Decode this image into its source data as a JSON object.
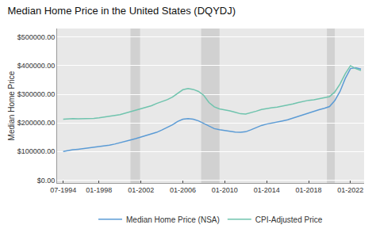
{
  "chart_data": {
    "type": "line",
    "title": "Median Home Price in the United States (DQYDJ)",
    "ylabel": "Median Home Price",
    "x": [
      1994.58,
      1995.0,
      1995.5,
      1996.0,
      1996.5,
      1997.0,
      1997.5,
      1998.0,
      1998.5,
      1999.0,
      1999.5,
      2000.0,
      2000.5,
      2001.0,
      2001.5,
      2002.0,
      2002.5,
      2003.0,
      2003.5,
      2004.0,
      2004.5,
      2005.0,
      2005.5,
      2006.0,
      2006.5,
      2007.0,
      2007.5,
      2008.0,
      2008.5,
      2009.0,
      2009.5,
      2010.0,
      2010.5,
      2011.0,
      2011.5,
      2012.0,
      2012.5,
      2013.0,
      2013.5,
      2014.0,
      2014.5,
      2015.0,
      2015.5,
      2016.0,
      2016.5,
      2017.0,
      2017.5,
      2018.0,
      2018.5,
      2019.0,
      2019.5,
      2020.0,
      2020.5,
      2021.0,
      2021.5,
      2022.0,
      2022.5,
      2023.0
    ],
    "series": [
      {
        "name": "Median Home Price (NSA)",
        "color": "#5b9bd5",
        "values": [
          100000,
          103000,
          106000,
          108000,
          110000,
          112000,
          114000,
          117000,
          119000,
          122000,
          126000,
          130000,
          135000,
          140000,
          145000,
          150000,
          155000,
          160000,
          167000,
          175000,
          183000,
          193000,
          205000,
          213000,
          215000,
          213000,
          207000,
          198000,
          188000,
          180000,
          176000,
          173000,
          171000,
          168000,
          167000,
          169000,
          176000,
          184000,
          191000,
          196000,
          199000,
          203000,
          207000,
          211000,
          217000,
          223000,
          229000,
          236000,
          241000,
          246000,
          251000,
          257000,
          278000,
          310000,
          355000,
          390000,
          393000,
          388000
        ]
      },
      {
        "name": "CPI-Adjusted Price",
        "color": "#70c4ae",
        "values": [
          213000,
          214000,
          215000,
          214000,
          214000,
          215000,
          216000,
          218000,
          220000,
          222000,
          226000,
          229000,
          234000,
          240000,
          246000,
          250000,
          255000,
          260000,
          268000,
          274000,
          281000,
          290000,
          303000,
          316000,
          320000,
          317000,
          310000,
          296000,
          271000,
          256000,
          249000,
          246000,
          242000,
          237000,
          232000,
          231000,
          235000,
          241000,
          247000,
          251000,
          253000,
          255000,
          258000,
          261000,
          266000,
          271000,
          276000,
          279000,
          281000,
          284000,
          288000,
          292000,
          308000,
          336000,
          372000,
          400000,
          390000,
          383000
        ]
      }
    ],
    "shaded_regions": [
      [
        2001.0,
        2001.92
      ],
      [
        2007.75,
        2009.5
      ],
      [
        2019.75,
        2020.5
      ]
    ],
    "xlim": [
      1994.0,
      2023.3
    ],
    "xticks": [
      {
        "value": 1994.58,
        "label": "07-1994"
      },
      {
        "value": 1998.0,
        "label": "01-1998"
      },
      {
        "value": 2002.0,
        "label": "01-2002"
      },
      {
        "value": 2006.0,
        "label": "01-2006"
      },
      {
        "value": 2010.0,
        "label": "01-2010"
      },
      {
        "value": 2014.0,
        "label": "01-2014"
      },
      {
        "value": 2018.0,
        "label": "01-2018"
      },
      {
        "value": 2022.0,
        "label": "01-2022"
      }
    ],
    "ylim": [
      -10000,
      530000
    ],
    "yticks": [
      {
        "value": 0,
        "label": "$0.00"
      },
      {
        "value": 100000,
        "label": "$100000.00"
      },
      {
        "value": 200000,
        "label": "$200000.00"
      },
      {
        "value": 300000,
        "label": "$300000.00"
      },
      {
        "value": 400000,
        "label": "$400000.00"
      },
      {
        "value": 500000,
        "label": "$500000.00"
      }
    ],
    "grid": true,
    "legend": "lower center"
  }
}
